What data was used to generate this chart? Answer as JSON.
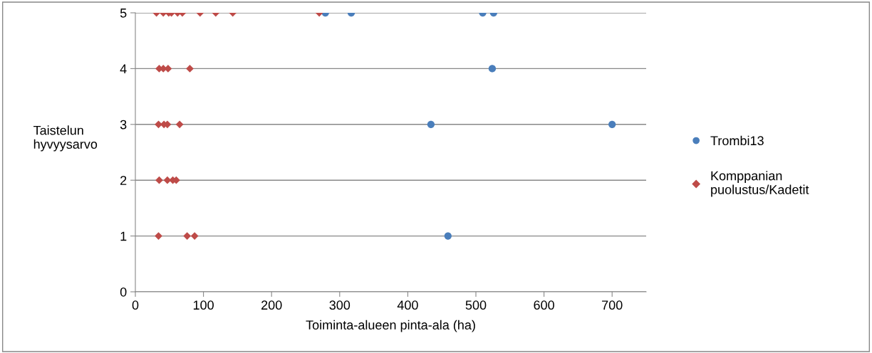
{
  "chart_data": {
    "type": "scatter",
    "xlabel": "Toiminta-alueen pinta-ala (ha)",
    "ylabel": "Taistelun\nhyvyysarvo",
    "xlim": [
      0,
      750
    ],
    "xticks": [
      0,
      100,
      200,
      300,
      400,
      500,
      600,
      700
    ],
    "ylim": [
      0,
      5
    ],
    "yticks": [
      0,
      1,
      2,
      3,
      4,
      5
    ],
    "grid": "y",
    "legend": "right",
    "series": [
      {
        "name": "Trombi13",
        "color": "#4a7ebb",
        "marker": "circle",
        "x": [
          279,
          317,
          510,
          526,
          524,
          434,
          700,
          459
        ],
        "values": [
          5,
          5,
          5,
          5,
          4,
          3,
          3,
          1
        ]
      },
      {
        "name": "Komppanian\npuolustus/Kadetit",
        "color": "#be4b48",
        "marker": "diamond",
        "x": [
          31,
          41,
          49,
          53,
          62,
          69,
          95,
          118,
          143,
          270,
          35,
          41,
          48,
          80,
          34,
          42,
          47,
          65,
          35,
          47,
          55,
          60,
          34,
          76,
          87
        ],
        "values": [
          5,
          5,
          5,
          5,
          5,
          5,
          5,
          5,
          5,
          5,
          4,
          4,
          4,
          4,
          3,
          3,
          3,
          3,
          2,
          2,
          2,
          2,
          1,
          1,
          1
        ]
      }
    ]
  }
}
